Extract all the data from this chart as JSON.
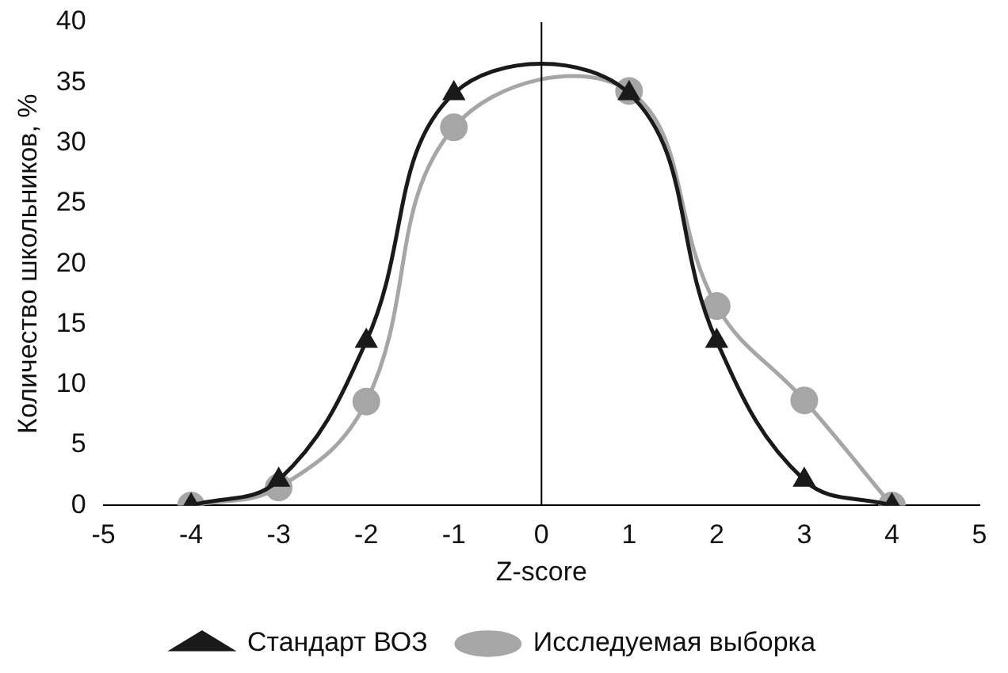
{
  "chart_data": {
    "type": "line",
    "xlabel": "Z-score",
    "ylabel": "Количество школьников, %",
    "x": [
      -4,
      -3,
      -2,
      -1,
      1,
      2,
      3,
      4
    ],
    "series": [
      {
        "name": "Стандарт ВОЗ",
        "color": "#1a1a1a",
        "marker": "triangle",
        "values": [
          0,
          2.1,
          13.6,
          34.1,
          34.1,
          13.6,
          2.1,
          0
        ]
      },
      {
        "name": "Исследуемая выборка",
        "color": "#a6a6a6",
        "marker": "circle",
        "values": [
          0,
          1.5,
          8.6,
          31.3,
          34.3,
          16.5,
          8.7,
          0
        ]
      }
    ],
    "xlim": [
      -5,
      5
    ],
    "xticks": [
      -5,
      -4,
      -3,
      -2,
      -1,
      0,
      1,
      2,
      3,
      4,
      5
    ],
    "ylim": [
      0,
      40
    ],
    "yticks": [
      0,
      5,
      10,
      15,
      20,
      25,
      30,
      35,
      40
    ],
    "ref_lines": [
      {
        "axis": "x",
        "value": 0,
        "color": "#000000"
      }
    ],
    "grid": false,
    "legend": "bottom"
  }
}
